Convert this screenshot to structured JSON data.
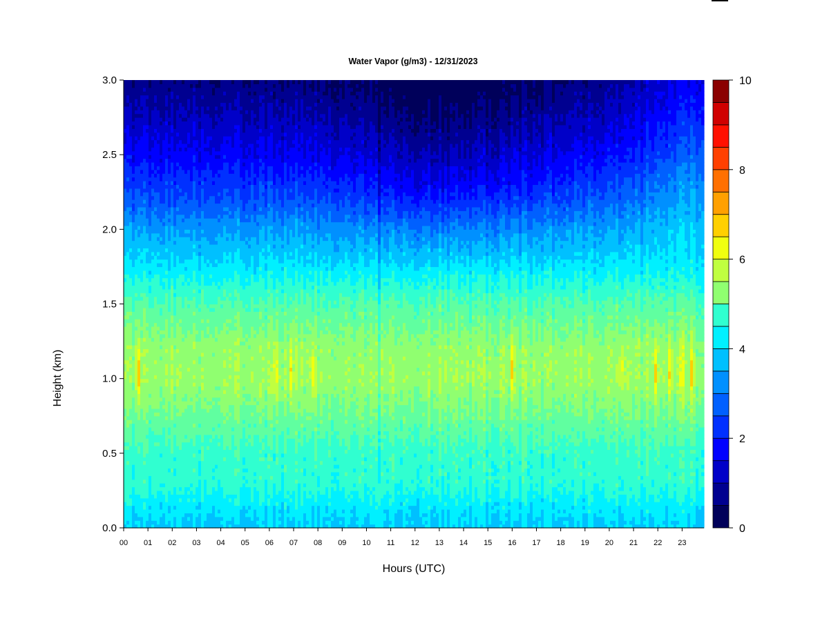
{
  "chart_data": {
    "type": "heatmap",
    "title": "Water Vapor (g/m3) - 12/31/2023",
    "xlabel": "Hours (UTC)",
    "ylabel": "Height (km)",
    "x_ticks": [
      "00",
      "01",
      "02",
      "03",
      "04",
      "05",
      "06",
      "07",
      "08",
      "09",
      "10",
      "11",
      "12",
      "13",
      "14",
      "15",
      "16",
      "17",
      "18",
      "19",
      "20",
      "21",
      "22",
      "23"
    ],
    "xlim": [
      0,
      23.9
    ],
    "y_ticks": [
      "0.0",
      "0.5",
      "1.0",
      "1.5",
      "2.0",
      "2.5",
      "3.0"
    ],
    "ylim": [
      0,
      3
    ],
    "colorbar": {
      "ticks": [
        "0",
        "2",
        "4",
        "6",
        "8",
        "10"
      ],
      "range": [
        0,
        10
      ],
      "step": 0.5,
      "colors": [
        "#00005a",
        "#000090",
        "#0000c8",
        "#0000ff",
        "#0030ff",
        "#0060ff",
        "#0090ff",
        "#00c0ff",
        "#00f0ff",
        "#30ffd0",
        "#60ffa0",
        "#90ff70",
        "#c0ff40",
        "#f0ff10",
        "#ffd000",
        "#ffa000",
        "#ff7000",
        "#ff4000",
        "#ff1000",
        "#d00000",
        "#8b0000"
      ]
    },
    "profile": {
      "heights_km": [
        0.0,
        0.1,
        0.3,
        0.5,
        0.8,
        1.0,
        1.2,
        1.5,
        1.8,
        2.0,
        2.2,
        2.5,
        2.8,
        3.0
      ],
      "values_g_m3": [
        3.9,
        4.1,
        4.7,
        4.8,
        5.5,
        5.9,
        5.8,
        5.1,
        4.0,
        3.4,
        2.6,
        1.7,
        1.0,
        0.6
      ]
    },
    "upper_variation": {
      "hours": [
        0,
        4,
        8,
        10,
        12,
        13,
        14,
        16,
        18,
        20,
        21,
        22,
        23,
        23.9
      ],
      "shift_g_m3": [
        0.0,
        0.0,
        -0.1,
        -0.3,
        -0.6,
        -0.7,
        -0.6,
        -0.4,
        -0.1,
        0.1,
        0.3,
        0.6,
        0.9,
        1.1
      ]
    },
    "moist_spikes": {
      "hours": [
        0.6,
        6.25,
        6.9,
        7.8,
        16.0,
        20.5,
        21.9,
        22.5,
        23.0,
        23.4
      ],
      "peak_g_m3": [
        7.6,
        7.2,
        7.0,
        6.9,
        7.1,
        7.0,
        7.2,
        7.0,
        7.0,
        7.0
      ]
    },
    "dry_streak": {
      "hour": 10.5,
      "shift_g_m3": -0.8
    }
  }
}
